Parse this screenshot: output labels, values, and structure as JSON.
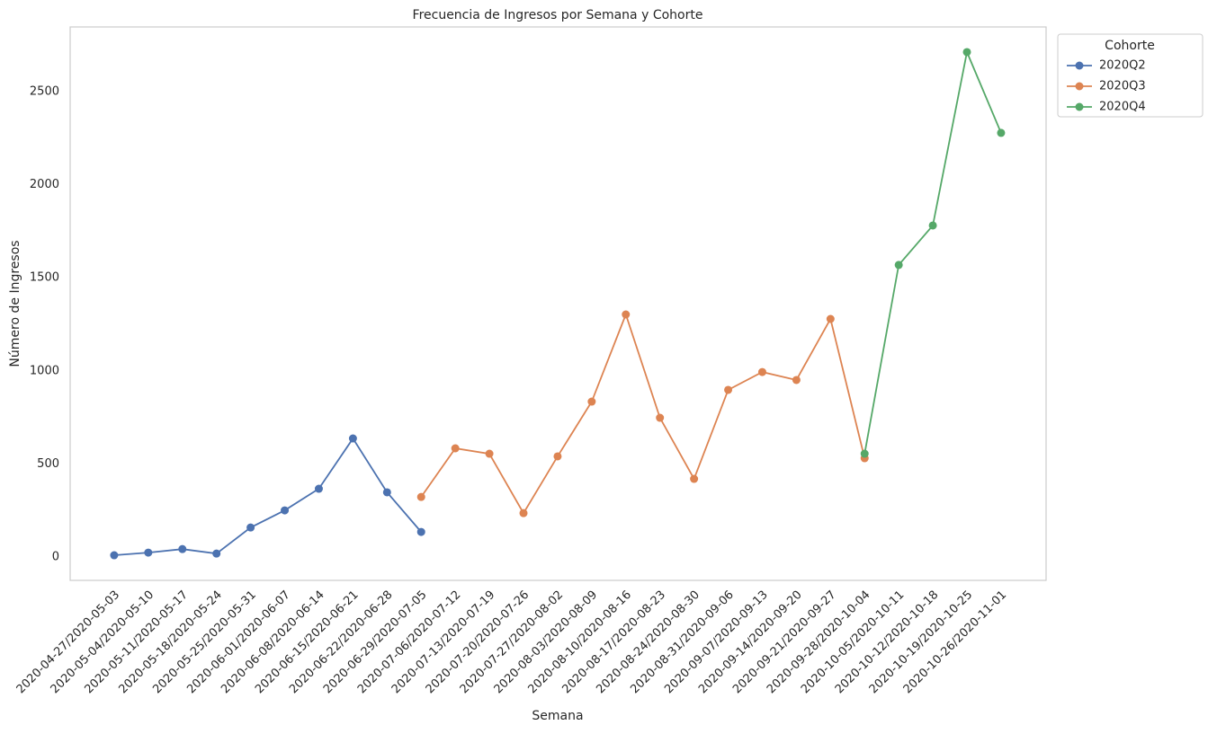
{
  "chart_data": {
    "type": "line",
    "title": "Frecuencia de Ingresos por Semana y Cohorte",
    "x_label": "Semana",
    "y_label": "Número de Ingresos",
    "legend_title": "Cohorte",
    "categories": [
      "2020-04-27/2020-05-03",
      "2020-05-04/2020-05-10",
      "2020-05-11/2020-05-17",
      "2020-05-18/2020-05-24",
      "2020-05-25/2020-05-31",
      "2020-06-01/2020-06-07",
      "2020-06-08/2020-06-14",
      "2020-06-15/2020-06-21",
      "2020-06-22/2020-06-28",
      "2020-06-29/2020-07-05",
      "2020-07-06/2020-07-12",
      "2020-07-13/2020-07-19",
      "2020-07-20/2020-07-26",
      "2020-07-27/2020-08-02",
      "2020-08-03/2020-08-09",
      "2020-08-10/2020-08-16",
      "2020-08-17/2020-08-23",
      "2020-08-24/2020-08-30",
      "2020-08-31/2020-09-06",
      "2020-09-07/2020-09-13",
      "2020-09-14/2020-09-20",
      "2020-09-21/2020-09-27",
      "2020-09-28/2020-10-04",
      "2020-10-05/2020-10-11",
      "2020-10-12/2020-10-18",
      "2020-10-19/2020-10-25",
      "2020-10-26/2020-11-01"
    ],
    "series": [
      {
        "name": "2020Q2",
        "color": "#4c72b0",
        "values": [
          10,
          24,
          43,
          19,
          159,
          251,
          367,
          637,
          348,
          135,
          null,
          null,
          null,
          null,
          null,
          null,
          null,
          null,
          null,
          null,
          null,
          null,
          null,
          null,
          null,
          null,
          null
        ]
      },
      {
        "name": "2020Q3",
        "color": "#dd8452",
        "values": [
          null,
          null,
          null,
          null,
          null,
          null,
          null,
          null,
          null,
          323,
          584,
          555,
          236,
          541,
          835,
          1303,
          748,
          420,
          898,
          994,
          951,
          1279,
          531,
          null,
          null,
          null,
          null
        ]
      },
      {
        "name": "2020Q4",
        "color": "#55a868",
        "values": [
          null,
          null,
          null,
          null,
          null,
          null,
          null,
          null,
          null,
          null,
          null,
          null,
          null,
          null,
          null,
          null,
          null,
          null,
          null,
          null,
          null,
          null,
          555,
          1569,
          1781,
          2712,
          2278
        ]
      }
    ],
    "ylim": [
      -125,
      2847
    ],
    "yticks": [
      0,
      500,
      1000,
      1500,
      2000,
      2500
    ],
    "grid": false
  }
}
